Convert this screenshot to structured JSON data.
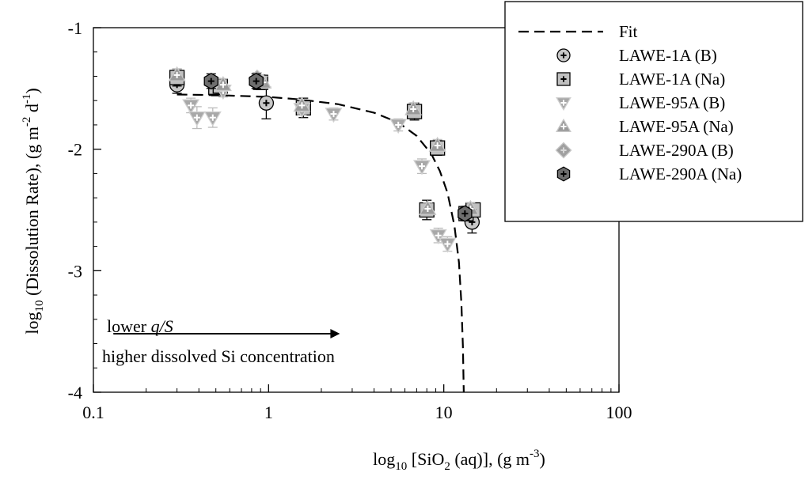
{
  "chart_data": {
    "type": "scatter",
    "xscale": "log",
    "xlim": [
      0.1,
      100
    ],
    "ylim": [
      -4,
      -1
    ],
    "grid": false,
    "legend_placement": "top-right",
    "xlabel": {
      "pre": "log",
      "sub": "10",
      "mid": " [SiO",
      "sub2": "2",
      "post": " (aq)], (g m",
      "sup": "-3",
      "end": ")"
    },
    "ylabel": {
      "pre": "log",
      "sub": "10",
      "mid": " (Dissolution Rate), (g m",
      "sup": "-2",
      "mid2": " d",
      "sup2": "-1",
      "end": ")"
    },
    "xticks": [
      {
        "value": 0.1,
        "label": "0.1"
      },
      {
        "value": 1,
        "label": "1"
      },
      {
        "value": 10,
        "label": "10"
      },
      {
        "value": 100,
        "label": "100"
      }
    ],
    "yticks": [
      {
        "value": -1,
        "label": "-1"
      },
      {
        "value": -2,
        "label": "-2"
      },
      {
        "value": -3,
        "label": "-3"
      },
      {
        "value": -4,
        "label": "-4"
      }
    ],
    "fit": {
      "name": "Fit",
      "x": [
        0.3,
        0.5,
        0.8,
        1.0,
        1.5,
        2.5,
        4.0,
        5.5,
        7.0,
        8.5,
        9.5,
        10.5,
        11.5,
        12.2,
        12.6,
        12.85,
        13.0
      ],
      "y": [
        -1.55,
        -1.555,
        -1.565,
        -1.57,
        -1.59,
        -1.63,
        -1.7,
        -1.78,
        -1.89,
        -2.04,
        -2.18,
        -2.36,
        -2.63,
        -2.93,
        -3.27,
        -3.62,
        -4.0
      ]
    },
    "series": [
      {
        "name": "LAWE-1A (B)",
        "marker": "circle",
        "fill": "#c8c8c8",
        "stroke": "#000000",
        "cross": "#000000",
        "points": [
          {
            "x": 0.3,
            "y": -1.47,
            "err": 0.07
          },
          {
            "x": 0.97,
            "y": -1.62,
            "err": 0.13
          },
          {
            "x": 14.5,
            "y": -2.6,
            "err": 0.09
          }
        ]
      },
      {
        "name": "LAWE-1A (Na)",
        "marker": "square",
        "fill": "#c0c0c0",
        "stroke": "#000000",
        "cross": "#000000",
        "points": [
          {
            "x": 0.3,
            "y": -1.41,
            "err": 0.07
          },
          {
            "x": 0.5,
            "y": -1.49,
            "err": 0.07
          },
          {
            "x": 0.53,
            "y": -1.48,
            "err": 0.06
          },
          {
            "x": 0.9,
            "y": -1.45,
            "err": 0.06
          },
          {
            "x": 1.58,
            "y": -1.66,
            "err": 0.08
          },
          {
            "x": 6.8,
            "y": -1.69,
            "err": 0.07
          },
          {
            "x": 9.2,
            "y": -1.99,
            "err": 0.06
          },
          {
            "x": 8.0,
            "y": -2.5,
            "err": 0.08
          },
          {
            "x": 13.4,
            "y": -2.53,
            "err": 0.06
          },
          {
            "x": 14.7,
            "y": -2.5,
            "err": 0.05
          }
        ]
      },
      {
        "name": "LAWE-95A (B)",
        "marker": "triangle-down",
        "fill": "#a8a8a8",
        "stroke": "#d0d0d0",
        "cross": "#ffffff",
        "points": [
          {
            "x": 0.36,
            "y": -1.64,
            "err": 0.06
          },
          {
            "x": 0.39,
            "y": -1.74,
            "err": 0.09
          },
          {
            "x": 0.48,
            "y": -1.74,
            "err": 0.08
          },
          {
            "x": 0.55,
            "y": -1.52,
            "err": 0.05
          },
          {
            "x": 1.55,
            "y": -1.67,
            "err": 0.05
          },
          {
            "x": 2.35,
            "y": -1.71,
            "err": 0.05
          },
          {
            "x": 5.5,
            "y": -1.8,
            "err": 0.05
          },
          {
            "x": 7.5,
            "y": -2.14,
            "err": 0.06
          },
          {
            "x": 9.3,
            "y": -2.71,
            "err": 0.06
          },
          {
            "x": 10.5,
            "y": -2.78,
            "err": 0.06
          }
        ]
      },
      {
        "name": "LAWE-95A (Na)",
        "marker": "triangle-up",
        "fill": "#9a9a9a",
        "stroke": "#c8c8c8",
        "cross": "#ffffff",
        "points": [
          {
            "x": 0.3,
            "y": -1.39,
            "err": 0.05
          },
          {
            "x": 0.55,
            "y": -1.47,
            "err": 0.05
          },
          {
            "x": 0.93,
            "y": -1.45,
            "err": 0.05
          },
          {
            "x": 1.55,
            "y": -1.64,
            "err": 0.05
          },
          {
            "x": 6.7,
            "y": -1.67,
            "err": 0.05
          },
          {
            "x": 9.2,
            "y": -1.97,
            "err": 0.05
          },
          {
            "x": 8.1,
            "y": -2.49,
            "err": 0.05
          },
          {
            "x": 14.2,
            "y": -2.49,
            "err": 0.05
          }
        ]
      },
      {
        "name": "LAWE-290A (B)",
        "marker": "diamond",
        "fill": "#a0a0a0",
        "stroke": "#c8c8c8",
        "cross": "#d8d8d8",
        "points": [
          {
            "x": 0.86,
            "y": -1.42,
            "err": 0.05
          }
        ]
      },
      {
        "name": "LAWE-290A (Na)",
        "marker": "hexagon",
        "fill": "#6e6e6e",
        "stroke": "#000000",
        "cross": "#000000",
        "points": [
          {
            "x": 0.47,
            "y": -1.44,
            "err": 0.06
          },
          {
            "x": 0.85,
            "y": -1.44,
            "err": 0.06
          },
          {
            "x": 13.2,
            "y": -2.53,
            "err": 0.05
          }
        ]
      }
    ],
    "annotations": {
      "arrow_label_pre": "lower ",
      "arrow_label_q": "q",
      "arrow_label_slash": "/",
      "arrow_label_S": "S",
      "bottom_text": "higher dissolved Si concentration",
      "arrow_from_x": 0.13,
      "arrow_to_x": 2.5
    }
  }
}
